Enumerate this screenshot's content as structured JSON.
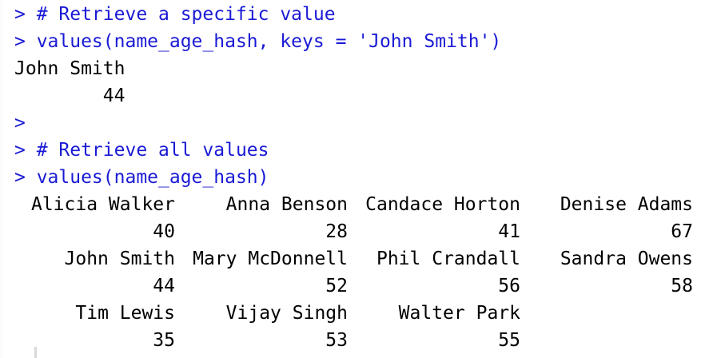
{
  "console": {
    "prompt": ">",
    "lines": [
      {
        "type": "cmd",
        "text": "> # Retrieve a specific value"
      },
      {
        "type": "cmd",
        "text": "> values(name_age_hash, keys = 'John Smith')"
      },
      {
        "type": "out",
        "text": "John Smith"
      },
      {
        "type": "out",
        "text": "        44"
      },
      {
        "type": "cmd",
        "text": ">"
      },
      {
        "type": "cmd",
        "text": "> # Retrieve all values"
      },
      {
        "type": "cmd",
        "text": "> values(name_age_hash)"
      }
    ],
    "table": {
      "rows": [
        {
          "names": [
            "Alicia Walker",
            "Anna Benson",
            "Candace Horton",
            "Denise Adams"
          ],
          "ages": [
            "40",
            "28",
            "41",
            "67"
          ]
        },
        {
          "names": [
            "John Smith",
            "Mary McDonnell",
            "Phil Crandall",
            "Sandra Owens"
          ],
          "ages": [
            "44",
            "52",
            "56",
            "58"
          ]
        },
        {
          "names": [
            "Tim Lewis",
            "Vijay Singh",
            "Walter Park"
          ],
          "ages": [
            "35",
            "53",
            "55"
          ]
        }
      ]
    }
  },
  "colors": {
    "command": "#1a1ad6",
    "output": "#000000",
    "background": "#ffffff"
  }
}
